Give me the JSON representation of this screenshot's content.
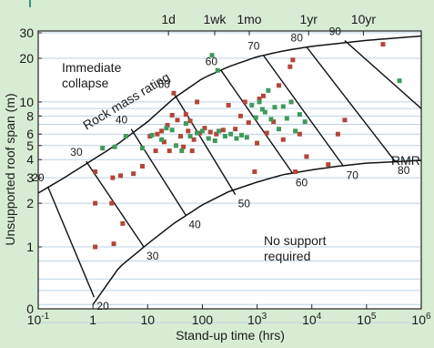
{
  "chart_data": {
    "type": "scatter",
    "xlabel": "Stand-up time (hrs)",
    "ylabel": "Unsupported roof span (m)",
    "x_scale": "log",
    "y_scale": "log",
    "xlim": [
      0.1,
      1000000
    ],
    "ylim": [
      0,
      30
    ],
    "x_ticks": [
      {
        "value": 0.1,
        "base": "10",
        "exp": "-1"
      },
      {
        "value": 1,
        "base": "1",
        "exp": ""
      },
      {
        "value": 10,
        "base": "10",
        "exp": ""
      },
      {
        "value": 100,
        "base": "100",
        "exp": ""
      },
      {
        "value": 1000,
        "base": "10",
        "exp": "3"
      },
      {
        "value": 10000,
        "base": "10",
        "exp": "4"
      },
      {
        "value": 100000,
        "base": "10",
        "exp": "5"
      },
      {
        "value": 1000000,
        "base": "10",
        "exp": "6"
      }
    ],
    "y_ticks": [
      {
        "value": 1,
        "label": "1"
      },
      {
        "value": 2,
        "label": "2"
      },
      {
        "value": 3,
        "label": "3"
      },
      {
        "value": 4,
        "label": "4"
      },
      {
        "value": 5,
        "label": "5"
      },
      {
        "value": 6,
        "label": "6"
      },
      {
        "value": 8,
        "label": "8"
      },
      {
        "value": 10,
        "label": "10"
      },
      {
        "value": 20,
        "label": "20"
      },
      {
        "value": 30,
        "label": "30"
      }
    ],
    "y_zero_label": "0",
    "time_marks": [
      {
        "label": "1d",
        "hours": 24
      },
      {
        "label": "1wk",
        "hours": 168
      },
      {
        "label": "1mo",
        "hours": 720
      },
      {
        "label": "1yr",
        "hours": 8760
      },
      {
        "label": "10yr",
        "hours": 87600
      }
    ],
    "upper_boundary_label": "Rock mass rating",
    "lower_boundary_label": "RMR",
    "annotations": [
      {
        "lines": [
          "Immediate",
          "collapse"
        ]
      },
      {
        "lines": [
          "No support",
          "required"
        ]
      }
    ],
    "rmr_lines": [
      {
        "label": "20",
        "top": [
          0.15,
          2.6
        ],
        "bottom": [
          1.05,
          0.45
        ]
      },
      {
        "label": "30",
        "top": [
          0.75,
          3.9
        ],
        "bottom": [
          8.5,
          1.0
        ]
      },
      {
        "label": "40",
        "top": [
          5.0,
          6.5
        ],
        "bottom": [
          50,
          1.65
        ]
      },
      {
        "label": "50",
        "top": [
          30,
          11.5
        ],
        "bottom": [
          400,
          2.3
        ]
      },
      {
        "label": "60",
        "top": [
          220,
          16.5
        ],
        "bottom": [
          4500,
          3.2
        ]
      },
      {
        "label": "70",
        "top": [
          1300,
          21
        ],
        "bottom": [
          38000,
          3.6
        ]
      },
      {
        "label": "80",
        "top": [
          8000,
          24
        ],
        "bottom": [
          330000,
          3.9
        ]
      },
      {
        "label": "90",
        "top": [
          40000,
          26.5
        ],
        "bottom": null
      }
    ],
    "series": [
      {
        "color": "#b2463a",
        "points": [
          [
            1.1,
            3.3
          ],
          [
            1.1,
            2.0
          ],
          [
            1.1,
            1.0
          ],
          [
            2.2,
            2.0
          ],
          [
            2.4,
            1.05
          ],
          [
            2.3,
            3.0
          ],
          [
            3.2,
            3.1
          ],
          [
            3.5,
            1.45
          ],
          [
            5.5,
            3.2
          ],
          [
            8,
            3.6
          ],
          [
            11,
            5.8
          ],
          [
            14,
            4.6
          ],
          [
            15,
            6.0
          ],
          [
            18,
            6.3
          ],
          [
            20,
            5.3
          ],
          [
            23,
            6.9
          ],
          [
            25,
            4.6
          ],
          [
            28,
            8.1
          ],
          [
            30,
            11.5
          ],
          [
            35,
            7.5
          ],
          [
            40,
            5.8
          ],
          [
            45,
            4.9
          ],
          [
            50,
            8.2
          ],
          [
            55,
            6.3
          ],
          [
            60,
            7.4
          ],
          [
            65,
            4.6
          ],
          [
            70,
            5.5
          ],
          [
            80,
            10.0
          ],
          [
            90,
            6.1
          ],
          [
            110,
            6.6
          ],
          [
            140,
            6.2
          ],
          [
            180,
            6.0
          ],
          [
            240,
            6.4
          ],
          [
            300,
            9.5
          ],
          [
            400,
            6.5
          ],
          [
            500,
            8.0
          ],
          [
            600,
            10.0
          ],
          [
            700,
            7.2
          ],
          [
            900,
            3.3
          ],
          [
            1000,
            5.2
          ],
          [
            1100,
            10.5
          ],
          [
            1300,
            11.0
          ],
          [
            1500,
            6.1
          ],
          [
            2000,
            7.3
          ],
          [
            2500,
            13.0
          ],
          [
            3000,
            5.5
          ],
          [
            4000,
            17.5
          ],
          [
            4500,
            19.5
          ],
          [
            5000,
            3.3
          ],
          [
            6000,
            6.0
          ],
          [
            8000,
            4.2
          ],
          [
            20000,
            3.7
          ],
          [
            30000,
            6.0
          ],
          [
            40000,
            7.5
          ],
          [
            200000,
            25.0
          ]
        ]
      },
      {
        "color": "#3e9a5c",
        "points": [
          [
            1.5,
            4.8
          ],
          [
            2.5,
            4.9
          ],
          [
            4,
            5.8
          ],
          [
            8,
            4.8
          ],
          [
            12,
            5.9
          ],
          [
            18,
            5.5
          ],
          [
            22,
            6.6
          ],
          [
            28,
            6.4
          ],
          [
            33,
            5.0
          ],
          [
            42,
            4.6
          ],
          [
            50,
            7.1
          ],
          [
            60,
            5.8
          ],
          [
            80,
            6.1
          ],
          [
            100,
            6.3
          ],
          [
            130,
            5.6
          ],
          [
            170,
            5.4
          ],
          [
            200,
            6.3
          ],
          [
            260,
            5.8
          ],
          [
            330,
            6.0
          ],
          [
            420,
            5.6
          ],
          [
            520,
            5.9
          ],
          [
            650,
            5.7
          ],
          [
            800,
            9.5
          ],
          [
            950,
            7.8
          ],
          [
            1100,
            10.0
          ],
          [
            1250,
            8.9
          ],
          [
            1400,
            8.5
          ],
          [
            1600,
            12.0
          ],
          [
            1800,
            7.6
          ],
          [
            2100,
            9.2
          ],
          [
            2500,
            6.5
          ],
          [
            3000,
            9.3
          ],
          [
            3500,
            7.7
          ],
          [
            4200,
            10.0
          ],
          [
            5000,
            6.3
          ],
          [
            6000,
            8.2
          ],
          [
            7500,
            7.3
          ],
          [
            150,
            21.0
          ],
          [
            190,
            16.5
          ],
          [
            400000,
            14.0
          ]
        ]
      }
    ]
  }
}
